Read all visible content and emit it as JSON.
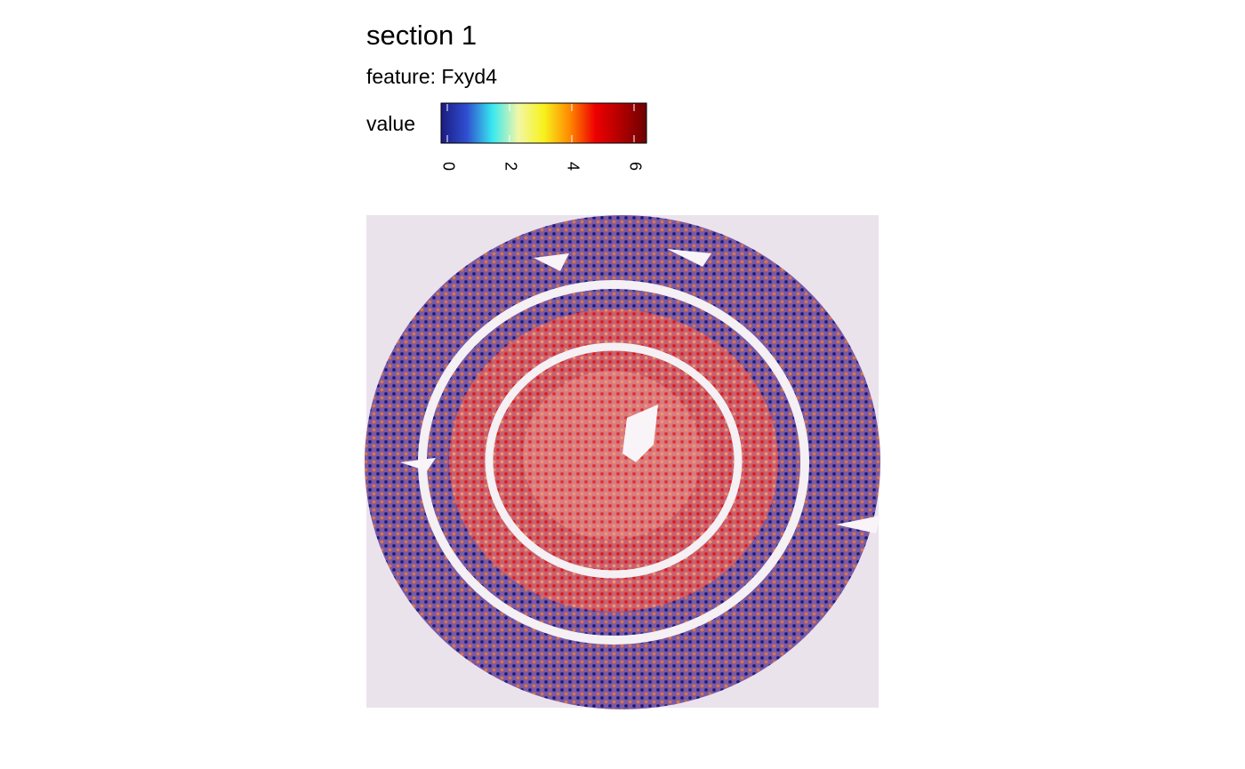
{
  "chart_data": {
    "type": "spatial",
    "title": "section 1",
    "subtitle": "feature:  Fxyd4",
    "legend_title": "value",
    "clim": [
      -0.2,
      6.4
    ],
    "cticks": [
      0,
      2,
      4,
      6
    ],
    "colors": [
      "#1b1b80",
      "#2f4fd0",
      "#38e8f0",
      "#f2f7a8",
      "#f7f21c",
      "#ff8a00",
      "#ee0000",
      "#b00000",
      "#6e0000"
    ]
  }
}
